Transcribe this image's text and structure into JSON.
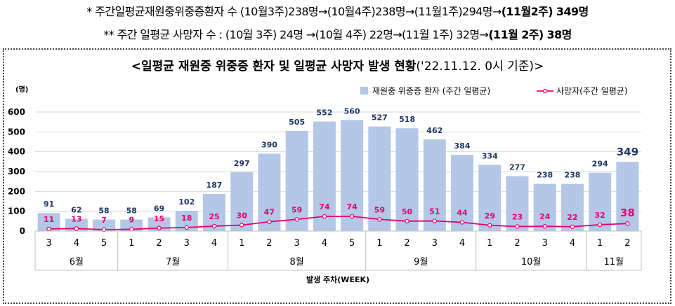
{
  "notes": {
    "line1_prefix": "*  주간일평균재원중위중증환자 수 (10월3주)238명→(10월4주)238명→(11월1주)294명→",
    "line1_bold": "(11월2주) 349명",
    "line2_prefix": "**  주간 일평균 사망자 수 : (10월 3주) 24명 →(10월 4주) 22명→(11월 1주) 32명→",
    "line2_bold": "(11월 2주) 38명"
  },
  "chart_data": {
    "type": "bar",
    "title": "<일평균 재원중 위중증 환자 및 일평균 사망자 발생 현황",
    "title_date": "('22.11.12. 0시 기준)>",
    "ylabel": "(명)",
    "xlabel": "발생 주차(WEEK)",
    "ylim": [
      0,
      600
    ],
    "yticks": [
      "0",
      "100",
      "200",
      "300",
      "400",
      "500",
      "600"
    ],
    "grid": true,
    "legend_position": "top-right",
    "categories": [
      "3",
      "4",
      "5",
      "1",
      "2",
      "3",
      "4",
      "1",
      "2",
      "3",
      "4",
      "5",
      "1",
      "2",
      "3",
      "4",
      "1",
      "2",
      "3",
      "4",
      "1",
      "2"
    ],
    "month_groups": [
      {
        "label": "6월",
        "count": 3
      },
      {
        "label": "7월",
        "count": 4
      },
      {
        "label": "8월",
        "count": 5
      },
      {
        "label": "9월",
        "count": 4
      },
      {
        "label": "10월",
        "count": 4
      },
      {
        "label": "11월",
        "count": 2
      }
    ],
    "series": [
      {
        "name": "재원중 위중증 환자 (주간 일평균)",
        "type": "bar",
        "color": "#b4c7e7",
        "label_color": "#203864",
        "values": [
          91,
          62,
          58,
          58,
          69,
          102,
          187,
          297,
          390,
          505,
          552,
          560,
          527,
          518,
          462,
          384,
          334,
          277,
          238,
          238,
          294,
          349
        ]
      },
      {
        "name": "사망자(주간 일평균)",
        "type": "line",
        "color": "#e6006e",
        "values": [
          11,
          13,
          7,
          9,
          15,
          18,
          25,
          30,
          47,
          59,
          74,
          74,
          59,
          50,
          51,
          44,
          29,
          23,
          24,
          22,
          32,
          38
        ]
      }
    ]
  }
}
